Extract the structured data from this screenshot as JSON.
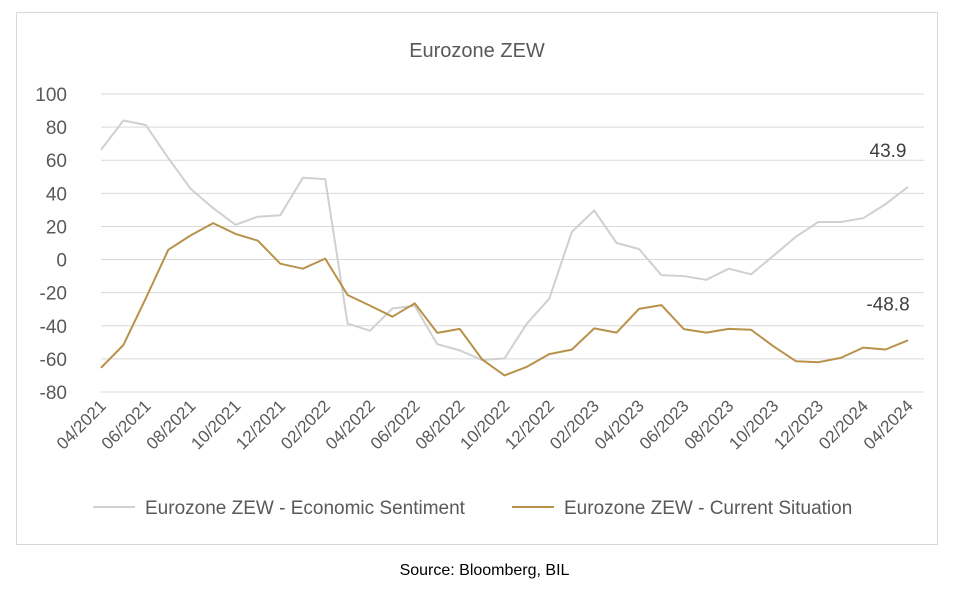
{
  "chart_data": {
    "type": "line",
    "title": "Eurozone ZEW",
    "xlabel": "",
    "ylabel": "",
    "ylim": [
      -80,
      100
    ],
    "yticks": [
      100,
      80,
      60,
      40,
      20,
      0,
      -20,
      -40,
      -60,
      -80
    ],
    "x": [
      "04/2021",
      "05/2021",
      "06/2021",
      "07/2021",
      "08/2021",
      "09/2021",
      "10/2021",
      "11/2021",
      "12/2021",
      "01/2022",
      "02/2022",
      "03/2022",
      "04/2022",
      "05/2022",
      "06/2022",
      "07/2022",
      "08/2022",
      "09/2022",
      "10/2022",
      "11/2022",
      "12/2022",
      "01/2023",
      "02/2023",
      "03/2023",
      "04/2023",
      "05/2023",
      "06/2023",
      "07/2023",
      "08/2023",
      "09/2023",
      "10/2023",
      "11/2023",
      "12/2023",
      "01/2024",
      "02/2024",
      "03/2024",
      "04/2024"
    ],
    "xtick_labels": [
      "04/2021",
      "06/2021",
      "08/2021",
      "10/2021",
      "12/2021",
      "02/2022",
      "04/2022",
      "06/2022",
      "08/2022",
      "10/2022",
      "12/2022",
      "02/2023",
      "04/2023",
      "06/2023",
      "08/2023",
      "10/2023",
      "12/2023",
      "02/2024",
      "04/2024"
    ],
    "series": [
      {
        "name": "Eurozone ZEW - Economic Sentiment",
        "color": "#d0d0d0",
        "values": [
          66.3,
          84.0,
          81.3,
          61.2,
          42.7,
          31.1,
          21.0,
          25.9,
          26.8,
          49.4,
          48.6,
          -38.7,
          -43.0,
          -29.5,
          -28.0,
          -51.1,
          -54.9,
          -60.7,
          -59.7,
          -38.7,
          -23.6,
          16.7,
          29.7,
          10.0,
          6.4,
          -9.4,
          -10.0,
          -12.2,
          -5.5,
          -8.9,
          2.3,
          13.8,
          22.7,
          22.7,
          25.0,
          33.5,
          43.9
        ],
        "end_label": "43.9"
      },
      {
        "name": "Eurozone ZEW - Current Situation",
        "color": "#b8924a",
        "values": [
          -65.4,
          -51.6,
          -23.4,
          5.9,
          14.6,
          22.0,
          15.5,
          11.4,
          -2.5,
          -5.5,
          0.6,
          -21.4,
          -27.8,
          -34.5,
          -26.4,
          -44.3,
          -41.9,
          -60.3,
          -70.0,
          -64.8,
          -57.1,
          -54.4,
          -41.6,
          -44.1,
          -29.8,
          -27.5,
          -42.0,
          -44.1,
          -41.9,
          -42.4,
          -52.4,
          -61.4,
          -62.0,
          -59.4,
          -53.2,
          -54.3,
          -48.8
        ],
        "end_label": "-48.8"
      }
    ],
    "grid": true,
    "legend_position": "bottom"
  },
  "source": "Source: Bloomberg, BIL"
}
